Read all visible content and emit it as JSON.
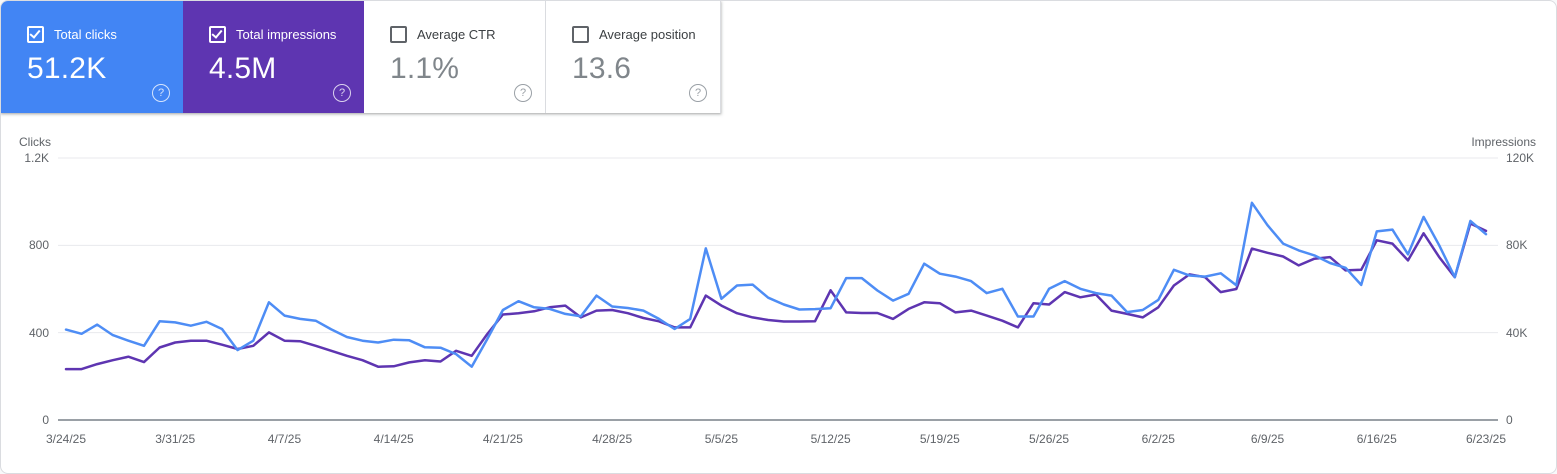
{
  "icons": {
    "help": "?",
    "check": "checkmark"
  },
  "cards": [
    {
      "id": "total-clicks",
      "label": "Total clicks",
      "value": "51.2K",
      "checked": true,
      "filled": true,
      "bg": "#4285f4"
    },
    {
      "id": "total-impressions",
      "label": "Total impressions",
      "value": "4.5M",
      "checked": true,
      "filled": true,
      "bg": "#5e35b1"
    },
    {
      "id": "average-ctr",
      "label": "Average CTR",
      "value": "1.1%",
      "checked": false,
      "filled": false,
      "bg": "#ffffff"
    },
    {
      "id": "average-position",
      "label": "Average position",
      "value": "13.6",
      "checked": false,
      "filled": false,
      "bg": "#ffffff"
    }
  ],
  "chart_data": {
    "type": "line",
    "grid": "horizontal",
    "x_labels": [
      "3/24/25",
      "3/31/25",
      "4/7/25",
      "4/14/25",
      "4/21/25",
      "4/28/25",
      "5/5/25",
      "5/12/25",
      "5/19/25",
      "5/26/25",
      "6/2/25",
      "6/9/25",
      "6/16/25",
      "6/23/25"
    ],
    "x_label_interval_days": 7,
    "left_axis": {
      "title": "Clicks",
      "max": 1200,
      "ticks": [
        {
          "label": "1.2K",
          "value": 1200
        },
        {
          "label": "800",
          "value": 800
        },
        {
          "label": "400",
          "value": 400
        },
        {
          "label": "0",
          "value": 0
        }
      ]
    },
    "right_axis": {
      "title": "Impressions",
      "max": 120000,
      "ticks": [
        {
          "label": "120K",
          "value": 120000
        },
        {
          "label": "80K",
          "value": 80000
        },
        {
          "label": "40K",
          "value": 40000
        },
        {
          "label": "0",
          "value": 0
        }
      ]
    },
    "series": [
      {
        "name": "Clicks",
        "axis": "left",
        "color": "#4e8df5",
        "values": [
          414,
          395,
          437,
          389,
          363,
          340,
          452,
          447,
          432,
          450,
          417,
          320,
          363,
          539,
          478,
          463,
          455,
          415,
          380,
          363,
          355,
          368,
          365,
          333,
          331,
          302,
          244,
          371,
          504,
          544,
          516,
          509,
          486,
          475,
          570,
          520,
          513,
          501,
          463,
          417,
          463,
          786,
          555,
          616,
          620,
          560,
          529,
          506,
          508,
          512,
          650,
          650,
          593,
          547,
          578,
          716,
          670,
          657,
          636,
          581,
          601,
          474,
          474,
          601,
          636,
          601,
          581,
          570,
          494,
          504,
          550,
          688,
          662,
          657,
          672,
          617,
          995,
          892,
          808,
          777,
          754,
          719,
          697,
          619,
          864,
          872,
          759,
          930,
          800,
          654,
          912,
          851
        ]
      },
      {
        "name": "Impressions",
        "axis": "right",
        "color": "#5e35b1",
        "values": [
          23300,
          23300,
          25600,
          27400,
          29000,
          26500,
          33200,
          35500,
          36300,
          36300,
          34500,
          32500,
          34000,
          40100,
          36300,
          36100,
          34000,
          31700,
          29400,
          27400,
          24400,
          24600,
          26400,
          27400,
          26800,
          31700,
          29400,
          39400,
          48300,
          48900,
          49800,
          51600,
          52400,
          47000,
          50100,
          50400,
          48900,
          46700,
          45200,
          42400,
          42400,
          57000,
          52400,
          48900,
          47000,
          45800,
          45100,
          45100,
          45200,
          59400,
          49300,
          49000,
          49000,
          46300,
          50900,
          53900,
          53500,
          49300,
          50100,
          47800,
          45500,
          42400,
          53500,
          52900,
          58600,
          56200,
          57500,
          50100,
          48600,
          47000,
          51600,
          61600,
          66700,
          65400,
          58600,
          60000,
          78500,
          76600,
          74900,
          70800,
          73900,
          74600,
          68500,
          68800,
          82300,
          80800,
          73100,
          85500,
          74600,
          65400,
          90000,
          86600
        ]
      }
    ]
  }
}
